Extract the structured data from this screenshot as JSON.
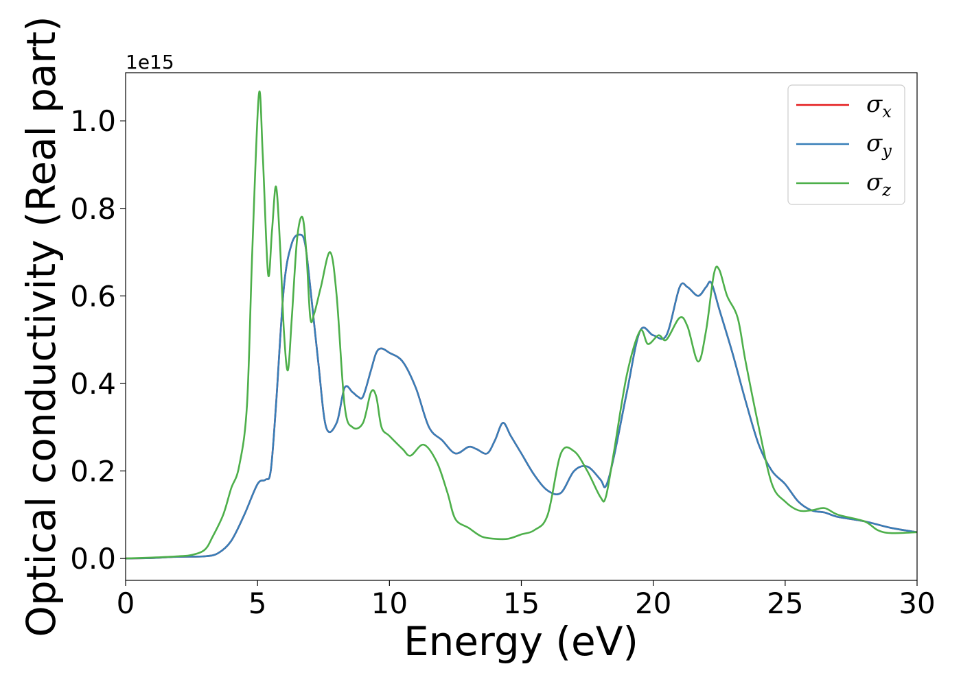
{
  "chart_data": {
    "type": "line",
    "xlabel": "Energy (eV)",
    "ylabel": "Optical conductivity (Real part)",
    "y_offset_text": "1e15",
    "xlim": [
      0,
      30
    ],
    "ylim": [
      -0.05,
      1.11
    ],
    "y_scale_factor": 1000000000000000.0,
    "x_ticks": [
      0,
      5,
      10,
      15,
      20,
      25,
      30
    ],
    "x_tick_labels": [
      "0",
      "5",
      "10",
      "15",
      "20",
      "25",
      "30"
    ],
    "y_ticks": [
      0.0,
      0.2,
      0.4,
      0.6,
      0.8,
      1.0
    ],
    "y_tick_labels": [
      "0.0",
      "0.2",
      "0.4",
      "0.6",
      "0.8",
      "1.0"
    ],
    "grid": false,
    "legend_position": "top-right",
    "series": [
      {
        "name": "σx",
        "base": "σ",
        "sub": "x",
        "color": "#e41a1c",
        "x": [
          0,
          1,
          2,
          3,
          3.5,
          4,
          4.5,
          5,
          5.3,
          5.5,
          5.7,
          6,
          6.3,
          6.6,
          6.8,
          7,
          7.3,
          7.6,
          8,
          8.3,
          8.6,
          8.8,
          9,
          9.3,
          9.5,
          9.7,
          10,
          10.5,
          11,
          11.5,
          12,
          12.5,
          13,
          13.3,
          13.7,
          14,
          14.3,
          14.6,
          15,
          15.5,
          16,
          16.5,
          17,
          17.5,
          18,
          18.2,
          18.5,
          19,
          19.5,
          20,
          20.5,
          21,
          21.3,
          21.7,
          22,
          22.2,
          22.5,
          23,
          23.5,
          24,
          24.5,
          25,
          25.5,
          26,
          26.5,
          27,
          28,
          29,
          30
        ],
        "y": [
          0,
          0.001,
          0.004,
          0.005,
          0.012,
          0.04,
          0.1,
          0.17,
          0.18,
          0.2,
          0.35,
          0.62,
          0.72,
          0.74,
          0.72,
          0.62,
          0.45,
          0.3,
          0.31,
          0.39,
          0.38,
          0.37,
          0.37,
          0.43,
          0.47,
          0.48,
          0.47,
          0.45,
          0.39,
          0.3,
          0.27,
          0.24,
          0.255,
          0.25,
          0.24,
          0.27,
          0.31,
          0.28,
          0.24,
          0.19,
          0.155,
          0.15,
          0.2,
          0.21,
          0.18,
          0.165,
          0.23,
          0.38,
          0.52,
          0.51,
          0.51,
          0.62,
          0.62,
          0.6,
          0.62,
          0.63,
          0.57,
          0.47,
          0.36,
          0.26,
          0.2,
          0.17,
          0.13,
          0.11,
          0.105,
          0.095,
          0.085,
          0.07,
          0.06
        ]
      },
      {
        "name": "σy",
        "base": "σ",
        "sub": "y",
        "color": "#377eb8",
        "x": [
          0,
          1,
          2,
          3,
          3.5,
          4,
          4.5,
          5,
          5.3,
          5.5,
          5.7,
          6,
          6.3,
          6.6,
          6.8,
          7,
          7.3,
          7.6,
          8,
          8.3,
          8.6,
          8.8,
          9,
          9.3,
          9.5,
          9.7,
          10,
          10.5,
          11,
          11.5,
          12,
          12.5,
          13,
          13.3,
          13.7,
          14,
          14.3,
          14.6,
          15,
          15.5,
          16,
          16.5,
          17,
          17.5,
          18,
          18.2,
          18.5,
          19,
          19.5,
          20,
          20.5,
          21,
          21.3,
          21.7,
          22,
          22.2,
          22.5,
          23,
          23.5,
          24,
          24.5,
          25,
          25.5,
          26,
          26.5,
          27,
          28,
          29,
          30
        ],
        "y": [
          0,
          0.001,
          0.004,
          0.005,
          0.012,
          0.04,
          0.1,
          0.17,
          0.18,
          0.2,
          0.35,
          0.62,
          0.72,
          0.74,
          0.72,
          0.62,
          0.45,
          0.3,
          0.31,
          0.39,
          0.38,
          0.37,
          0.37,
          0.43,
          0.47,
          0.48,
          0.47,
          0.45,
          0.39,
          0.3,
          0.27,
          0.24,
          0.255,
          0.25,
          0.24,
          0.27,
          0.31,
          0.28,
          0.24,
          0.19,
          0.155,
          0.15,
          0.2,
          0.21,
          0.18,
          0.165,
          0.23,
          0.38,
          0.52,
          0.51,
          0.51,
          0.62,
          0.62,
          0.6,
          0.62,
          0.63,
          0.57,
          0.47,
          0.36,
          0.26,
          0.2,
          0.17,
          0.13,
          0.11,
          0.105,
          0.095,
          0.085,
          0.07,
          0.06
        ]
      },
      {
        "name": "σz",
        "base": "σ",
        "sub": "z",
        "color": "#4daf4a",
        "x": [
          0,
          1,
          2,
          2.5,
          3,
          3.3,
          3.7,
          4,
          4.3,
          4.6,
          4.8,
          5.05,
          5.2,
          5.4,
          5.55,
          5.7,
          5.85,
          6,
          6.15,
          6.3,
          6.5,
          6.7,
          6.85,
          7,
          7.15,
          7.4,
          7.75,
          8,
          8.3,
          8.6,
          9,
          9.3,
          9.5,
          9.7,
          10,
          10.5,
          10.8,
          11.3,
          11.8,
          12.2,
          12.5,
          13,
          13.5,
          14,
          14.5,
          15,
          15.5,
          16,
          16.5,
          17,
          17.5,
          18,
          18.2,
          18.5,
          19,
          19.5,
          19.8,
          20.2,
          20.5,
          21,
          21.3,
          21.7,
          22,
          22.3,
          22.5,
          22.8,
          23.2,
          23.5,
          24,
          24.5,
          25,
          25.5,
          26,
          26.5,
          27,
          28,
          28.5,
          29,
          30
        ],
        "y": [
          0,
          0.002,
          0.005,
          0.008,
          0.02,
          0.05,
          0.1,
          0.16,
          0.21,
          0.35,
          0.7,
          1.06,
          0.92,
          0.65,
          0.75,
          0.85,
          0.72,
          0.52,
          0.43,
          0.55,
          0.73,
          0.78,
          0.7,
          0.55,
          0.56,
          0.62,
          0.7,
          0.6,
          0.35,
          0.3,
          0.31,
          0.38,
          0.37,
          0.3,
          0.28,
          0.25,
          0.235,
          0.26,
          0.22,
          0.15,
          0.09,
          0.07,
          0.05,
          0.045,
          0.045,
          0.055,
          0.065,
          0.1,
          0.24,
          0.245,
          0.2,
          0.14,
          0.14,
          0.24,
          0.42,
          0.52,
          0.49,
          0.51,
          0.5,
          0.55,
          0.53,
          0.45,
          0.52,
          0.65,
          0.66,
          0.6,
          0.55,
          0.45,
          0.3,
          0.17,
          0.13,
          0.11,
          0.11,
          0.115,
          0.1,
          0.085,
          0.065,
          0.058,
          0.06
        ]
      }
    ]
  }
}
